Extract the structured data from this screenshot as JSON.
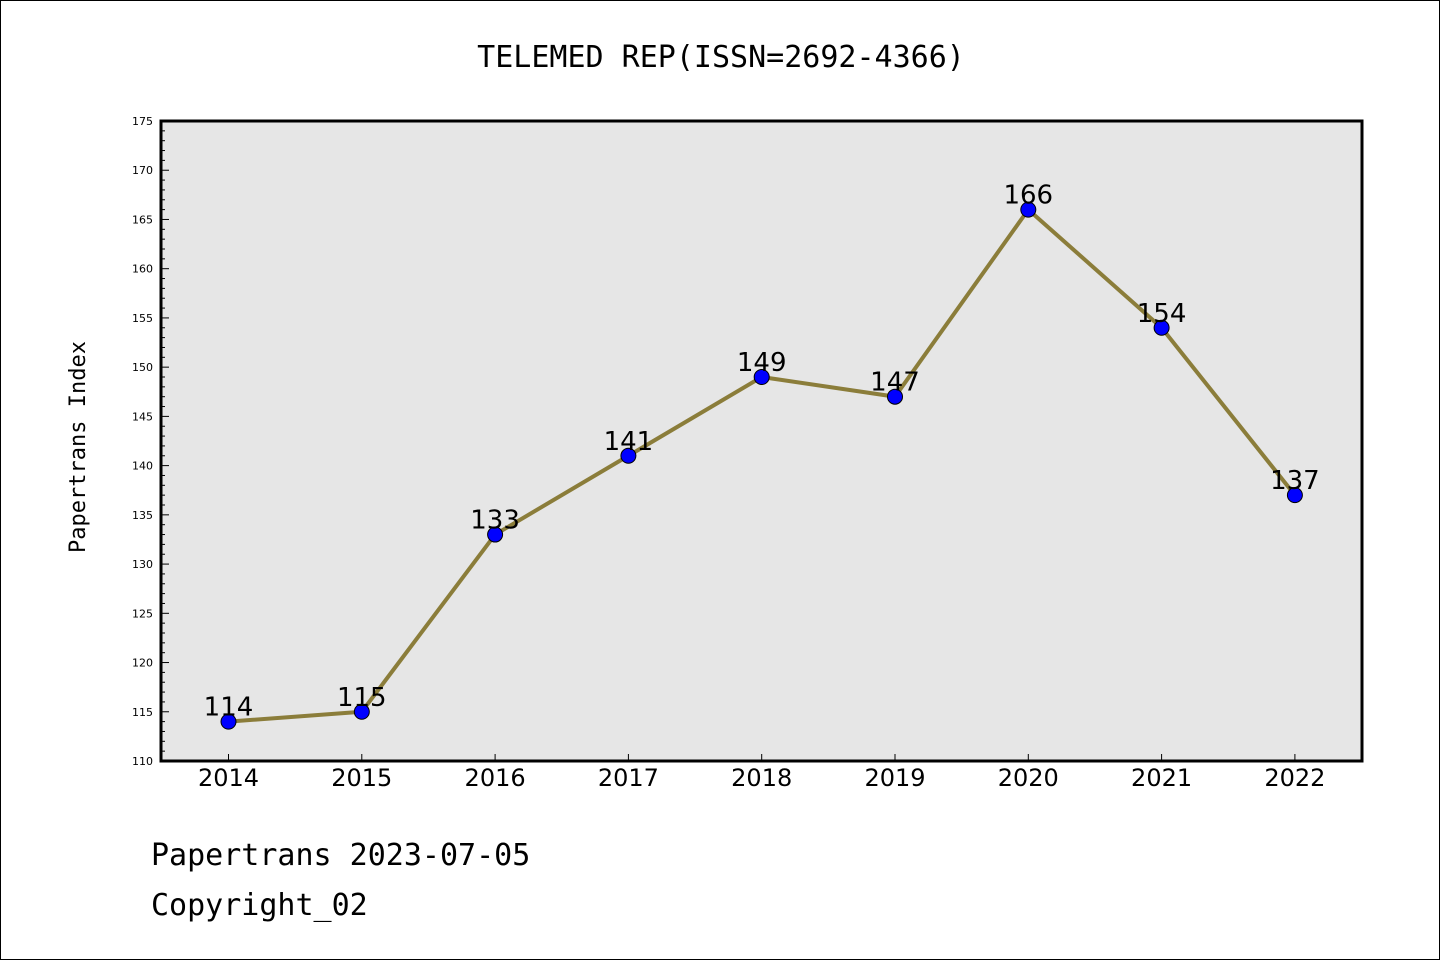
{
  "chart_data": {
    "type": "line",
    "title": "TELEMED REP(ISSN=2692-4366)",
    "xlabel": "",
    "ylabel": "Papertrans Index",
    "categories": [
      "2014",
      "2015",
      "2016",
      "2017",
      "2018",
      "2019",
      "2020",
      "2021",
      "2022"
    ],
    "series": [
      {
        "values": [
          114,
          115,
          133,
          141,
          149,
          147,
          166,
          154,
          137
        ]
      }
    ],
    "ylim": [
      110,
      175
    ],
    "yticks": [
      110,
      115,
      120,
      125,
      130,
      135,
      140,
      145,
      150,
      155,
      160,
      165,
      170,
      175
    ],
    "grid": false,
    "colors": {
      "line": "#8b7d3a",
      "marker": "#0000ff",
      "plot_background": "#e6e6e6"
    }
  },
  "footer": {
    "date_line": "Papertrans 2023-07-05",
    "copyright": "Copyright_02"
  }
}
